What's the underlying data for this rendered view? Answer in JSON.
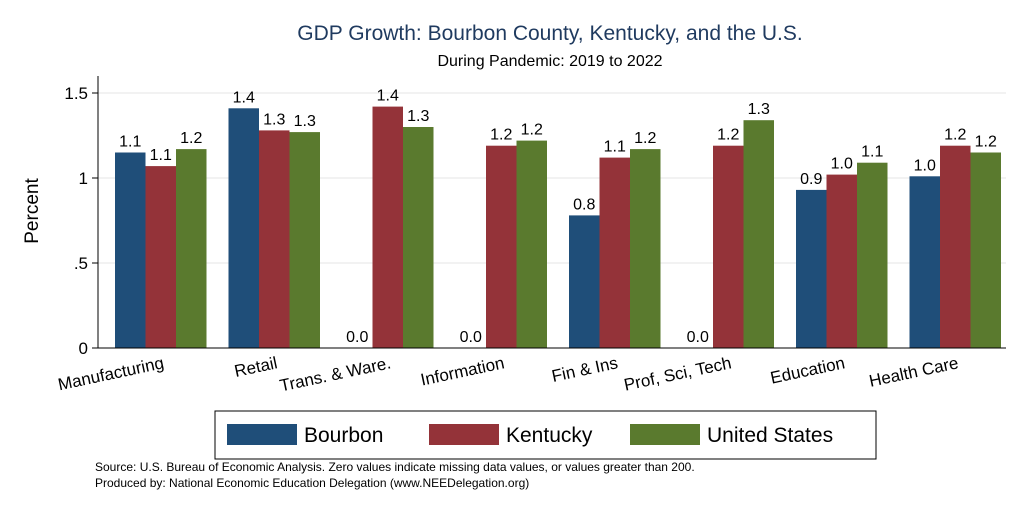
{
  "chart_data": {
    "type": "bar",
    "title": "GDP Growth: Bourbon County, Kentucky, and the U.S.",
    "subtitle": "During Pandemic: 2019 to 2022",
    "xlabel": "",
    "ylabel": "Percent",
    "ylim": [
      0,
      1.6
    ],
    "yticks": [
      {
        "value": 0,
        "label": "0"
      },
      {
        "value": 0.5,
        "label": ".5"
      },
      {
        "value": 1,
        "label": "1"
      },
      {
        "value": 1.5,
        "label": "1.5"
      }
    ],
    "grid": true,
    "legend_position": "bottom",
    "categories": [
      "Manufacturing",
      "Retail",
      "Trans. & Ware.",
      "Information",
      "Fin & Ins",
      "Prof, Sci, Tech",
      "Education",
      "Health Care"
    ],
    "series": [
      {
        "name": "Bourbon",
        "color": "#1f4e79",
        "values": [
          1.15,
          1.41,
          0,
          0,
          0.78,
          0,
          0.93,
          1.01
        ],
        "labels": [
          "1.1",
          "1.4",
          "0.0",
          "0.0",
          "0.8",
          "0.0",
          "0.9",
          "1.0"
        ]
      },
      {
        "name": "Kentucky",
        "color": "#943339",
        "values": [
          1.07,
          1.28,
          1.42,
          1.19,
          1.12,
          1.19,
          1.02,
          1.19
        ],
        "labels": [
          "1.1",
          "1.3",
          "1.4",
          "1.2",
          "1.1",
          "1.2",
          "1.0",
          "1.2"
        ]
      },
      {
        "name": "United States",
        "color": "#5a7a2e",
        "values": [
          1.17,
          1.27,
          1.3,
          1.22,
          1.17,
          1.34,
          1.09,
          1.15
        ],
        "labels": [
          "1.2",
          "1.3",
          "1.3",
          "1.2",
          "1.2",
          "1.3",
          "1.1",
          "1.2"
        ]
      }
    ]
  },
  "footnotes": {
    "source": "Source: U.S. Bureau of Economic Analysis. Zero values indicate missing data values, or values greater than 200.",
    "produced_by": "Produced by: National Economic Education Delegation (www.NEEDelegation.org)"
  }
}
